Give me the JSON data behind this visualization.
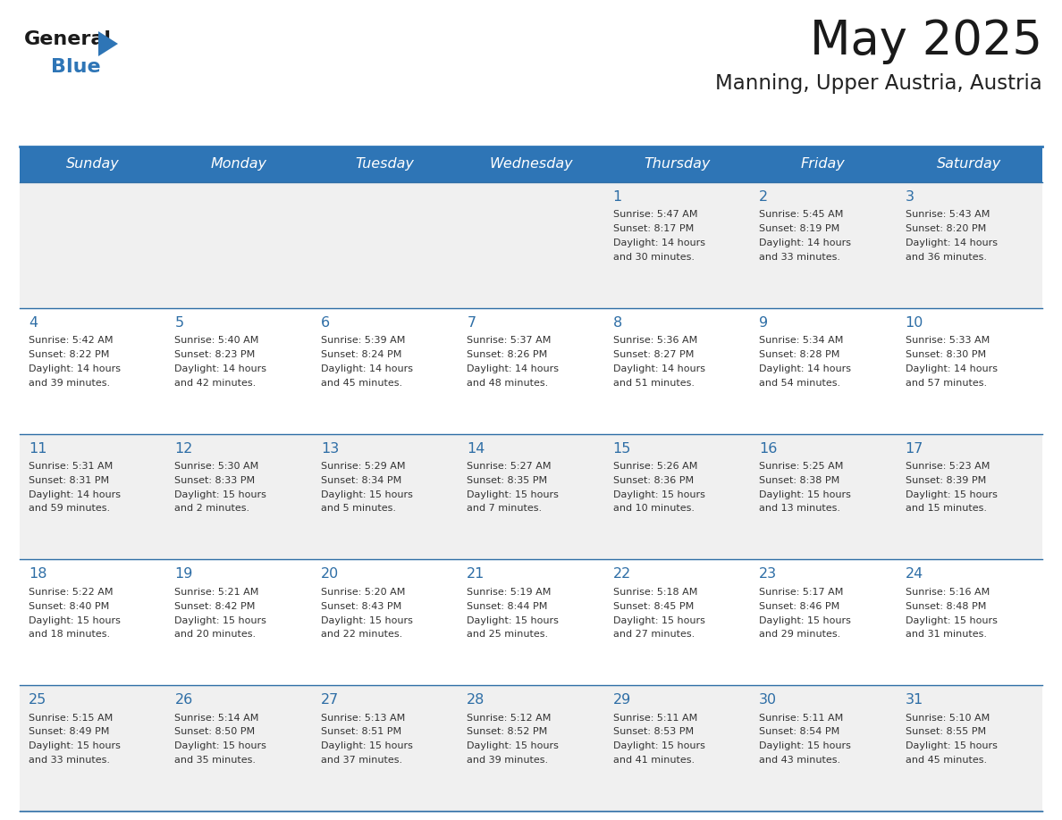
{
  "title": "May 2025",
  "subtitle": "Manning, Upper Austria, Austria",
  "header_bg_color": "#2E75B6",
  "header_text_color": "#FFFFFF",
  "day_names": [
    "Sunday",
    "Monday",
    "Tuesday",
    "Wednesday",
    "Thursday",
    "Friday",
    "Saturday"
  ],
  "row1_bg": "#F0F0F0",
  "row2_bg": "#FFFFFF",
  "cell_border_color": "#2E6EA6",
  "title_color": "#1a1a1a",
  "subtitle_color": "#222222",
  "text_color": "#333333",
  "logo_general_color": "#1a1a1a",
  "logo_blue_color": "#2E75B6",
  "logo_triangle_color": "#2E75B6",
  "calendar_data": [
    [
      null,
      null,
      null,
      null,
      {
        "day": 1,
        "sunrise": "5:47 AM",
        "sunset": "8:17 PM",
        "daylight_h": "14 hours",
        "daylight_m": "and 30 minutes."
      },
      {
        "day": 2,
        "sunrise": "5:45 AM",
        "sunset": "8:19 PM",
        "daylight_h": "14 hours",
        "daylight_m": "and 33 minutes."
      },
      {
        "day": 3,
        "sunrise": "5:43 AM",
        "sunset": "8:20 PM",
        "daylight_h": "14 hours",
        "daylight_m": "and 36 minutes."
      }
    ],
    [
      {
        "day": 4,
        "sunrise": "5:42 AM",
        "sunset": "8:22 PM",
        "daylight_h": "14 hours",
        "daylight_m": "and 39 minutes."
      },
      {
        "day": 5,
        "sunrise": "5:40 AM",
        "sunset": "8:23 PM",
        "daylight_h": "14 hours",
        "daylight_m": "and 42 minutes."
      },
      {
        "day": 6,
        "sunrise": "5:39 AM",
        "sunset": "8:24 PM",
        "daylight_h": "14 hours",
        "daylight_m": "and 45 minutes."
      },
      {
        "day": 7,
        "sunrise": "5:37 AM",
        "sunset": "8:26 PM",
        "daylight_h": "14 hours",
        "daylight_m": "and 48 minutes."
      },
      {
        "day": 8,
        "sunrise": "5:36 AM",
        "sunset": "8:27 PM",
        "daylight_h": "14 hours",
        "daylight_m": "and 51 minutes."
      },
      {
        "day": 9,
        "sunrise": "5:34 AM",
        "sunset": "8:28 PM",
        "daylight_h": "14 hours",
        "daylight_m": "and 54 minutes."
      },
      {
        "day": 10,
        "sunrise": "5:33 AM",
        "sunset": "8:30 PM",
        "daylight_h": "14 hours",
        "daylight_m": "and 57 minutes."
      }
    ],
    [
      {
        "day": 11,
        "sunrise": "5:31 AM",
        "sunset": "8:31 PM",
        "daylight_h": "14 hours",
        "daylight_m": "and 59 minutes."
      },
      {
        "day": 12,
        "sunrise": "5:30 AM",
        "sunset": "8:33 PM",
        "daylight_h": "15 hours",
        "daylight_m": "and 2 minutes."
      },
      {
        "day": 13,
        "sunrise": "5:29 AM",
        "sunset": "8:34 PM",
        "daylight_h": "15 hours",
        "daylight_m": "and 5 minutes."
      },
      {
        "day": 14,
        "sunrise": "5:27 AM",
        "sunset": "8:35 PM",
        "daylight_h": "15 hours",
        "daylight_m": "and 7 minutes."
      },
      {
        "day": 15,
        "sunrise": "5:26 AM",
        "sunset": "8:36 PM",
        "daylight_h": "15 hours",
        "daylight_m": "and 10 minutes."
      },
      {
        "day": 16,
        "sunrise": "5:25 AM",
        "sunset": "8:38 PM",
        "daylight_h": "15 hours",
        "daylight_m": "and 13 minutes."
      },
      {
        "day": 17,
        "sunrise": "5:23 AM",
        "sunset": "8:39 PM",
        "daylight_h": "15 hours",
        "daylight_m": "and 15 minutes."
      }
    ],
    [
      {
        "day": 18,
        "sunrise": "5:22 AM",
        "sunset": "8:40 PM",
        "daylight_h": "15 hours",
        "daylight_m": "and 18 minutes."
      },
      {
        "day": 19,
        "sunrise": "5:21 AM",
        "sunset": "8:42 PM",
        "daylight_h": "15 hours",
        "daylight_m": "and 20 minutes."
      },
      {
        "day": 20,
        "sunrise": "5:20 AM",
        "sunset": "8:43 PM",
        "daylight_h": "15 hours",
        "daylight_m": "and 22 minutes."
      },
      {
        "day": 21,
        "sunrise": "5:19 AM",
        "sunset": "8:44 PM",
        "daylight_h": "15 hours",
        "daylight_m": "and 25 minutes."
      },
      {
        "day": 22,
        "sunrise": "5:18 AM",
        "sunset": "8:45 PM",
        "daylight_h": "15 hours",
        "daylight_m": "and 27 minutes."
      },
      {
        "day": 23,
        "sunrise": "5:17 AM",
        "sunset": "8:46 PM",
        "daylight_h": "15 hours",
        "daylight_m": "and 29 minutes."
      },
      {
        "day": 24,
        "sunrise": "5:16 AM",
        "sunset": "8:48 PM",
        "daylight_h": "15 hours",
        "daylight_m": "and 31 minutes."
      }
    ],
    [
      {
        "day": 25,
        "sunrise": "5:15 AM",
        "sunset": "8:49 PM",
        "daylight_h": "15 hours",
        "daylight_m": "and 33 minutes."
      },
      {
        "day": 26,
        "sunrise": "5:14 AM",
        "sunset": "8:50 PM",
        "daylight_h": "15 hours",
        "daylight_m": "and 35 minutes."
      },
      {
        "day": 27,
        "sunrise": "5:13 AM",
        "sunset": "8:51 PM",
        "daylight_h": "15 hours",
        "daylight_m": "and 37 minutes."
      },
      {
        "day": 28,
        "sunrise": "5:12 AM",
        "sunset": "8:52 PM",
        "daylight_h": "15 hours",
        "daylight_m": "and 39 minutes."
      },
      {
        "day": 29,
        "sunrise": "5:11 AM",
        "sunset": "8:53 PM",
        "daylight_h": "15 hours",
        "daylight_m": "and 41 minutes."
      },
      {
        "day": 30,
        "sunrise": "5:11 AM",
        "sunset": "8:54 PM",
        "daylight_h": "15 hours",
        "daylight_m": "and 43 minutes."
      },
      {
        "day": 31,
        "sunrise": "5:10 AM",
        "sunset": "8:55 PM",
        "daylight_h": "15 hours",
        "daylight_m": "and 45 minutes."
      }
    ]
  ]
}
